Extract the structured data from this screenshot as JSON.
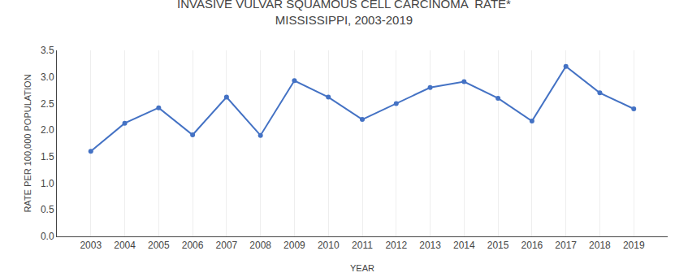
{
  "chart_data": {
    "type": "line",
    "title": "INVASIVE VULVAR SQUAMOUS CELL CARCINOMA  RATE*",
    "subtitle": "MISSISSIPPI, 2003-2019",
    "x_label": "YEAR",
    "y_label": "RATE PER 100,000 POPULATION",
    "x": [
      2003,
      2004,
      2005,
      2006,
      2007,
      2008,
      2009,
      2010,
      2011,
      2012,
      2013,
      2014,
      2015,
      2016,
      2017,
      2018,
      2019
    ],
    "values": [
      1.6,
      2.13,
      2.42,
      1.91,
      2.62,
      1.9,
      2.93,
      2.62,
      2.2,
      2.5,
      2.8,
      2.91,
      2.6,
      2.17,
      3.2,
      2.7,
      2.4
    ],
    "color": "#4472C4",
    "marker": "circle",
    "xlim": [
      2002,
      2020
    ],
    "xticks": [
      2003,
      2004,
      2005,
      2006,
      2007,
      2008,
      2009,
      2010,
      2011,
      2012,
      2013,
      2014,
      2015,
      2016,
      2017,
      2018,
      2019
    ],
    "ylim": [
      0.0,
      3.5
    ],
    "yticks": [
      {
        "value": 0.0,
        "label": "0.0"
      },
      0.5,
      {
        "value": 1.0,
        "label": "1.0"
      },
      1.5,
      {
        "value": 2.0,
        "label": "2.0"
      },
      2.5,
      {
        "value": 3.0,
        "label": "3.0"
      },
      3.5
    ],
    "grid": "x"
  }
}
